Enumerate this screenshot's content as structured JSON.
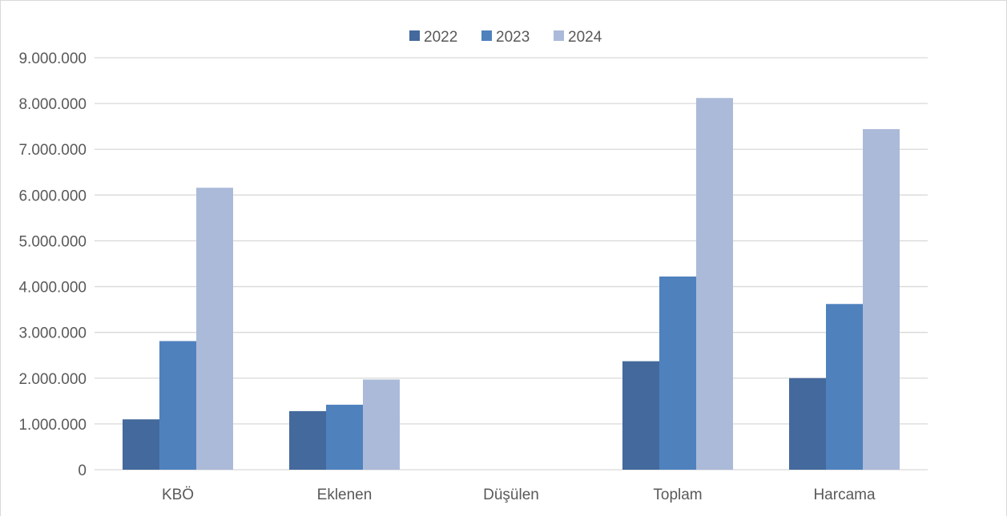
{
  "chart_data": {
    "type": "bar",
    "categories": [
      "KBÖ",
      "Eklenen",
      "Düşülen",
      "Toplam",
      "Harcama"
    ],
    "series": [
      {
        "name": "2022",
        "color": "#44699c",
        "values": [
          1100000,
          1280000,
          0,
          2370000,
          2000000
        ]
      },
      {
        "name": "2023",
        "color": "#4f81bd",
        "values": [
          2810000,
          1420000,
          0,
          4220000,
          3620000
        ]
      },
      {
        "name": "2024",
        "color": "#abbad9",
        "values": [
          6160000,
          1970000,
          0,
          8120000,
          7440000
        ]
      }
    ],
    "ylim": [
      0,
      9000000
    ],
    "y_ticks": [
      0,
      1000000,
      2000000,
      3000000,
      4000000,
      5000000,
      6000000,
      7000000,
      8000000,
      9000000
    ],
    "y_tick_labels": [
      "0",
      "1.000.000",
      "2.000.000",
      "3.000.000",
      "4.000.000",
      "5.000.000",
      "6.000.000",
      "7.000.000",
      "8.000.000",
      "9.000.000"
    ],
    "grid": true,
    "legend_position": "top-center",
    "gridline_color": "#d9d9d9"
  }
}
